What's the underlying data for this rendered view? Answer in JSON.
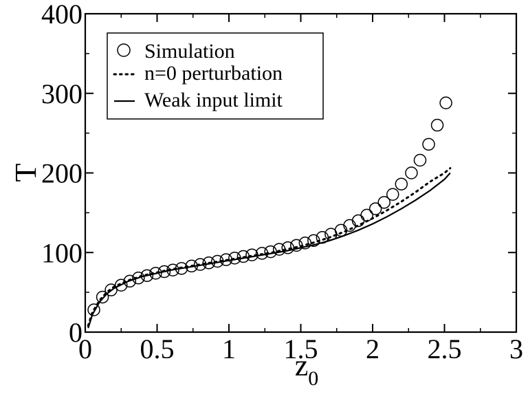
{
  "chart_data": {
    "type": "line",
    "xlabel": "z",
    "xlabel_sub": "0",
    "ylabel": "T",
    "xlim": [
      0,
      3
    ],
    "ylim": [
      0,
      400
    ],
    "xticks": [
      0,
      0.5,
      1,
      1.5,
      2,
      2.5,
      3
    ],
    "xtick_labels": [
      "0",
      "0.5",
      "1",
      "1.5",
      "2",
      "2.5",
      "3"
    ],
    "yticks": [
      0,
      100,
      200,
      300,
      400
    ],
    "ytick_labels": [
      "0",
      "100",
      "200",
      "300",
      "400"
    ],
    "grid": false,
    "legend_position": "top-left",
    "series": [
      {
        "name": "Simulation",
        "style": "open-circle",
        "x": [
          0.06,
          0.12,
          0.18,
          0.25,
          0.31,
          0.37,
          0.43,
          0.49,
          0.55,
          0.61,
          0.67,
          0.74,
          0.8,
          0.86,
          0.92,
          0.98,
          1.04,
          1.1,
          1.16,
          1.23,
          1.29,
          1.35,
          1.41,
          1.47,
          1.53,
          1.59,
          1.65,
          1.71,
          1.78,
          1.84,
          1.9,
          1.96,
          2.02,
          2.08,
          2.14,
          2.2,
          2.27,
          2.33,
          2.39,
          2.45,
          2.51
        ],
        "y": [
          28,
          44,
          53,
          59,
          64,
          68,
          71,
          74,
          76,
          78,
          80,
          83,
          85,
          87,
          89,
          91,
          93,
          95,
          97,
          99,
          101,
          104,
          106,
          109,
          112,
          115,
          119,
          123,
          128,
          134,
          140,
          147,
          155,
          163,
          173,
          186,
          200,
          216,
          236,
          260,
          288
        ]
      },
      {
        "name": "n=0 perturbation",
        "style": "dotted",
        "x": [
          0.02,
          0.05,
          0.1,
          0.15,
          0.2,
          0.3,
          0.4,
          0.5,
          0.6,
          0.7,
          0.8,
          0.9,
          1.0,
          1.1,
          1.2,
          1.3,
          1.4,
          1.5,
          1.6,
          1.7,
          1.8,
          1.9,
          2.0,
          2.1,
          2.2,
          2.3,
          2.4,
          2.5,
          2.54
        ],
        "y": [
          8,
          25,
          40,
          50,
          57,
          65,
          71,
          75,
          79,
          82,
          85,
          88,
          91,
          94,
          97,
          100,
          104,
          108,
          113,
          119,
          126,
          134,
          143,
          153,
          164,
          176,
          189,
          200,
          206
        ]
      },
      {
        "name": "Weak input limit",
        "style": "solid",
        "x": [
          0.02,
          0.05,
          0.1,
          0.15,
          0.2,
          0.3,
          0.4,
          0.5,
          0.6,
          0.7,
          0.8,
          0.9,
          1.0,
          1.1,
          1.2,
          1.3,
          1.4,
          1.5,
          1.6,
          1.7,
          1.8,
          1.9,
          2.0,
          2.1,
          2.2,
          2.3,
          2.4,
          2.5,
          2.54
        ],
        "y": [
          5,
          22,
          38,
          48,
          55,
          64,
          70,
          74,
          78,
          81,
          84,
          87,
          90,
          93,
          96,
          99,
          102,
          106,
          110,
          115,
          121,
          128,
          136,
          145,
          155,
          166,
          178,
          192,
          200
        ]
      }
    ]
  }
}
